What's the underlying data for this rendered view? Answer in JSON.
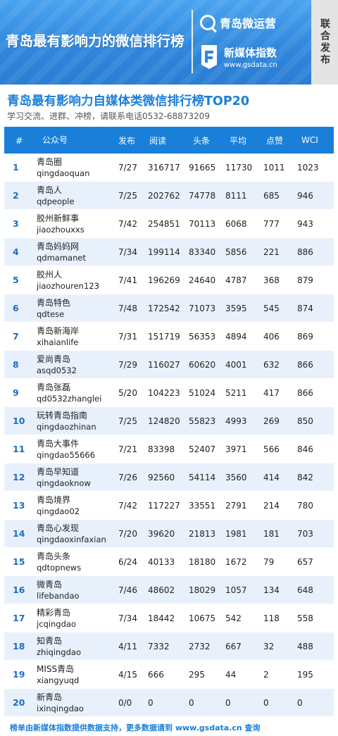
{
  "banner": {
    "title": "青岛最有影响力的微信排行榜",
    "brand1": "青岛微运营",
    "brand2_name": "新媒体指数",
    "brand2_url": "www.gsdata.cn",
    "side_tab": "联合发布",
    "colors": {
      "banner": "#2f86dc",
      "side_tab": "#e4e4e4"
    }
  },
  "heading": {
    "title": "青岛最有影响力自媒体类微信排行榜TOP20",
    "subtitle": "学习交流、进群、冲榜，请联系电话0532-68873209"
  },
  "table": {
    "headers": {
      "rank": "#",
      "account": "公众号",
      "publish": "发布",
      "read": "阅读",
      "headline": "头条",
      "average": "平均",
      "like": "点赞",
      "wci": "WCI"
    },
    "rows": [
      {
        "rank": "1",
        "name": "青岛圈",
        "id": "qingdaoquan",
        "publish": "7/27",
        "read": "316717",
        "headline": "91665",
        "average": "11730",
        "like": "1011",
        "wci": "1023"
      },
      {
        "rank": "2",
        "name": "青岛人",
        "id": "qdpeople",
        "publish": "7/25",
        "read": "202762",
        "headline": "74778",
        "average": "8111",
        "like": "685",
        "wci": "946"
      },
      {
        "rank": "3",
        "name": "胶州新鲜事",
        "id": "jiaozhouxxs",
        "publish": "7/42",
        "read": "254851",
        "headline": "70113",
        "average": "6068",
        "like": "777",
        "wci": "943"
      },
      {
        "rank": "4",
        "name": "青岛妈妈网",
        "id": "qdmamanet",
        "publish": "7/34",
        "read": "199114",
        "headline": "83340",
        "average": "5856",
        "like": "221",
        "wci": "886"
      },
      {
        "rank": "5",
        "name": "胶州人",
        "id": "jiaozhouren123",
        "publish": "7/41",
        "read": "196269",
        "headline": "24640",
        "average": "4787",
        "like": "368",
        "wci": "879"
      },
      {
        "rank": "6",
        "name": "青岛特色",
        "id": "qdtese",
        "publish": "7/48",
        "read": "172542",
        "headline": "71073",
        "average": "3595",
        "like": "545",
        "wci": "874"
      },
      {
        "rank": "7",
        "name": "青岛新海岸",
        "id": "xihaianlife",
        "publish": "7/31",
        "read": "151719",
        "headline": "56353",
        "average": "4894",
        "like": "406",
        "wci": "869"
      },
      {
        "rank": "8",
        "name": "爱尚青岛",
        "id": "asqd0532",
        "publish": "7/29",
        "read": "116027",
        "headline": "60620",
        "average": "4001",
        "like": "632",
        "wci": "866"
      },
      {
        "rank": "9",
        "name": "青岛张磊",
        "id": "qd0532zhanglei",
        "publish": "5/20",
        "read": "104223",
        "headline": "51024",
        "average": "5211",
        "like": "417",
        "wci": "866"
      },
      {
        "rank": "10",
        "name": "玩转青岛指南",
        "id": "qingdaozhinan",
        "publish": "7/25",
        "read": "124820",
        "headline": "55823",
        "average": "4993",
        "like": "269",
        "wci": "850"
      },
      {
        "rank": "11",
        "name": "青岛大事件",
        "id": "qingdao55666",
        "publish": "7/21",
        "read": "83398",
        "headline": "52407",
        "average": "3971",
        "like": "566",
        "wci": "846"
      },
      {
        "rank": "12",
        "name": "青岛早知道",
        "id": "qingdaoknow",
        "publish": "7/26",
        "read": "92560",
        "headline": "54114",
        "average": "3560",
        "like": "414",
        "wci": "842"
      },
      {
        "rank": "13",
        "name": "青岛境界",
        "id": "qingdao02",
        "publish": "7/42",
        "read": "117227",
        "headline": "33551",
        "average": "2791",
        "like": "214",
        "wci": "780"
      },
      {
        "rank": "14",
        "name": "青岛心发现",
        "id": "qingdaoxinfaxian",
        "publish": "7/20",
        "read": "39620",
        "headline": "21813",
        "average": "1981",
        "like": "181",
        "wci": "703"
      },
      {
        "rank": "15",
        "name": "青岛头条",
        "id": "qdtopnews",
        "publish": "6/24",
        "read": "40133",
        "headline": "18180",
        "average": "1672",
        "like": "79",
        "wci": "657"
      },
      {
        "rank": "16",
        "name": "微青岛",
        "id": "lifebandao",
        "publish": "7/46",
        "read": "48602",
        "headline": "18029",
        "average": "1057",
        "like": "134",
        "wci": "648"
      },
      {
        "rank": "17",
        "name": "精彩青岛",
        "id": "jcqingdao",
        "publish": "7/34",
        "read": "18442",
        "headline": "10675",
        "average": "542",
        "like": "118",
        "wci": "558"
      },
      {
        "rank": "18",
        "name": "知青岛",
        "id": "zhiqingdao",
        "publish": "4/11",
        "read": "7332",
        "headline": "2732",
        "average": "667",
        "like": "32",
        "wci": "488"
      },
      {
        "rank": "19",
        "name": "MISS青岛",
        "id": "xiangyuqd",
        "publish": "4/15",
        "read": "666",
        "headline": "295",
        "average": "44",
        "like": "2",
        "wci": "195"
      },
      {
        "rank": "20",
        "name": "新青岛",
        "id": "ixinqingdao",
        "publish": "0/0",
        "read": "0",
        "headline": "0",
        "average": "0",
        "like": "0",
        "wci": "0"
      }
    ],
    "colors": {
      "header": "#1a7fd8",
      "row_alt": "#e8f1fb",
      "rank": "#1a6fc4"
    }
  },
  "footer": {
    "text": "榜单由新媒体指数提供数据支持，更多数据请到 www.gsdata.cn 查询"
  }
}
